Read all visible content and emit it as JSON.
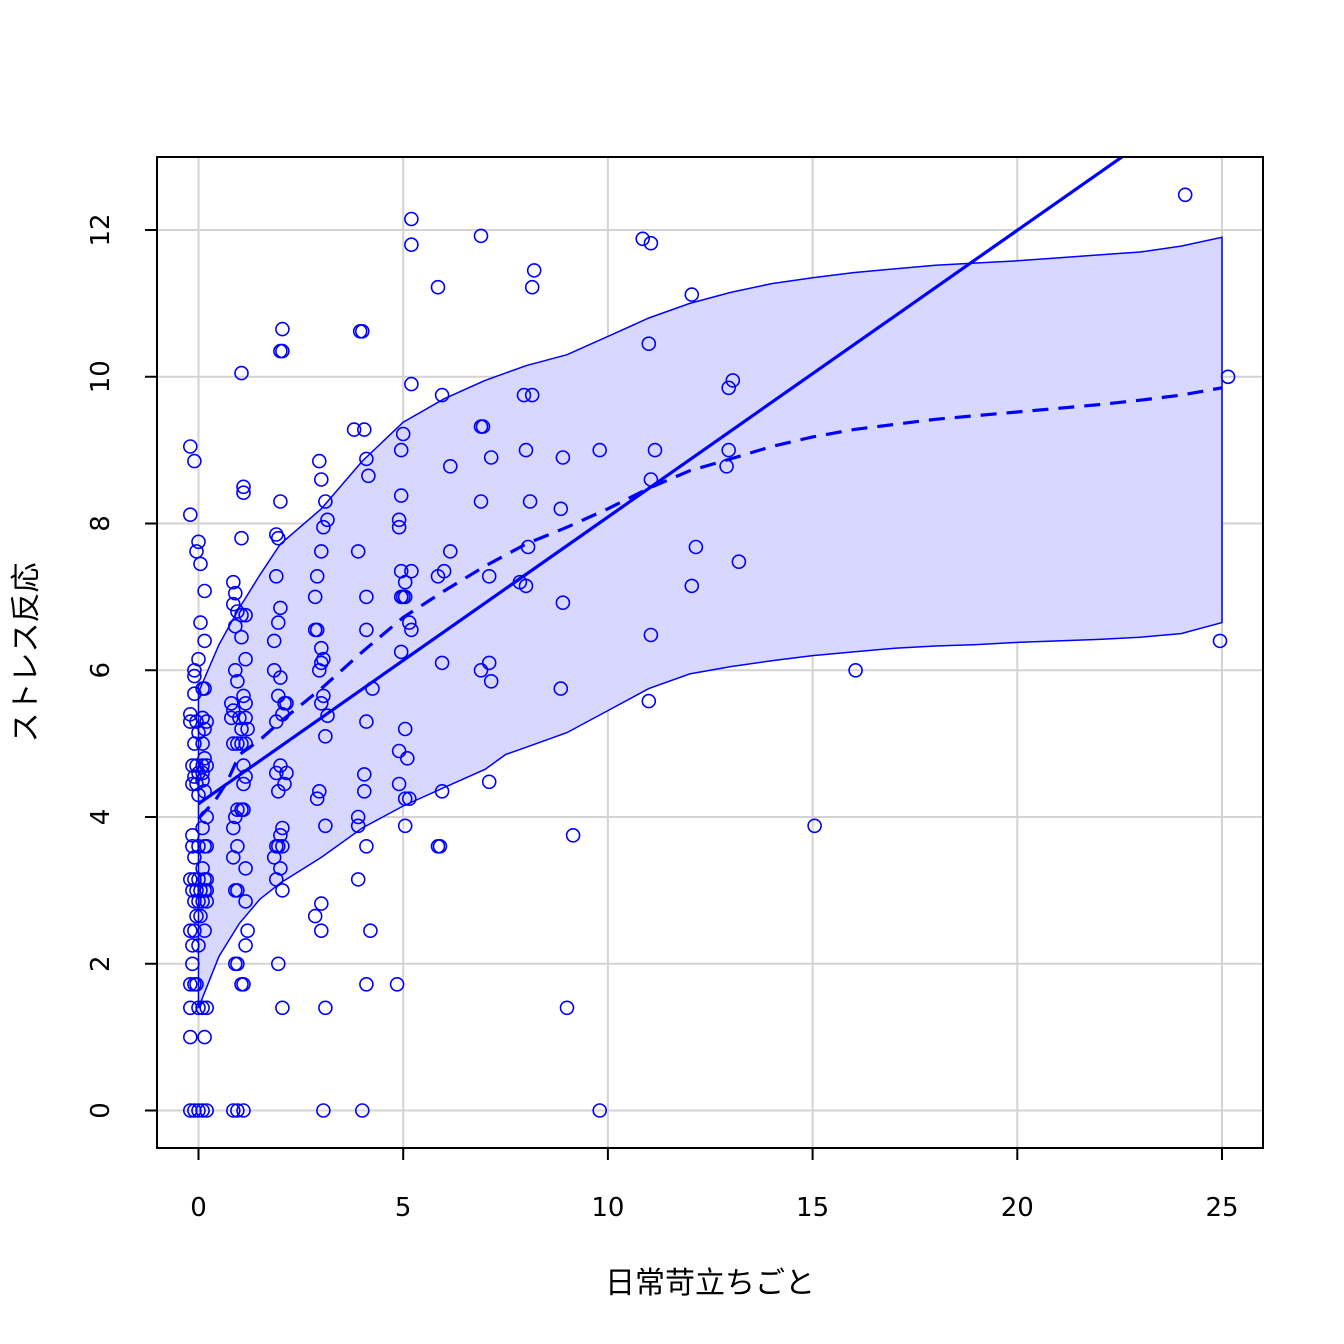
{
  "chart_data": {
    "type": "scatter",
    "title": "",
    "xlabel": "日常苛立ちごと",
    "ylabel": "ストレス反応",
    "xlim": [
      -1,
      26
    ],
    "ylim": [
      -0.5,
      13
    ],
    "xticks": [
      0,
      5,
      10,
      15,
      20,
      25
    ],
    "yticks": [
      0,
      2,
      4,
      6,
      8,
      10,
      12
    ],
    "grid": true,
    "legend": "none",
    "colors": {
      "points": "#0000ff",
      "band_fill": "#d8d8ff",
      "band_line": "#0000ff",
      "grid": "#d3d3d3",
      "axis": "#000000"
    },
    "points": [
      [
        -0.2,
        9.05
      ],
      [
        -0.2,
        8.12
      ],
      [
        -0.1,
        8.85
      ],
      [
        -0.05,
        7.62
      ],
      [
        0,
        7.75
      ],
      [
        0.05,
        7.45
      ],
      [
        0.15,
        7.08
      ],
      [
        0.05,
        6.65
      ],
      [
        0.15,
        6.4
      ],
      [
        0,
        6.15
      ],
      [
        -0.1,
        6.0
      ],
      [
        -0.1,
        5.92
      ],
      [
        -0.1,
        5.68
      ],
      [
        0.1,
        5.75
      ],
      [
        0.15,
        5.75
      ],
      [
        -0.2,
        5.4
      ],
      [
        -0.2,
        5.3
      ],
      [
        -0.05,
        5.3
      ],
      [
        0.1,
        5.35
      ],
      [
        0.2,
        5.3
      ],
      [
        0,
        5.15
      ],
      [
        0.15,
        5.2
      ],
      [
        -0.1,
        5.0
      ],
      [
        0.1,
        5.0
      ],
      [
        0.15,
        4.8
      ],
      [
        -0.15,
        4.7
      ],
      [
        -0.05,
        4.7
      ],
      [
        0.1,
        4.7
      ],
      [
        0.2,
        4.7
      ],
      [
        -0.1,
        4.55
      ],
      [
        0,
        4.6
      ],
      [
        0.1,
        4.6
      ],
      [
        -0.15,
        4.45
      ],
      [
        -0.05,
        4.45
      ],
      [
        0.1,
        4.5
      ],
      [
        0.15,
        4.35
      ],
      [
        0,
        4.3
      ],
      [
        0.2,
        4.0
      ],
      [
        0.1,
        3.85
      ],
      [
        -0.15,
        3.75
      ],
      [
        -0.15,
        3.6
      ],
      [
        0,
        3.6
      ],
      [
        0.15,
        3.6
      ],
      [
        0.2,
        3.6
      ],
      [
        -0.1,
        3.45
      ],
      [
        0.1,
        3.3
      ],
      [
        -0.2,
        3.15
      ],
      [
        -0.1,
        3.15
      ],
      [
        0,
        3.15
      ],
      [
        0.15,
        3.15
      ],
      [
        0.2,
        3.15
      ],
      [
        -0.15,
        3.0
      ],
      [
        -0.05,
        3.0
      ],
      [
        0.05,
        3.0
      ],
      [
        0.15,
        3.0
      ],
      [
        0.2,
        3.0
      ],
      [
        -0.1,
        2.85
      ],
      [
        0,
        2.85
      ],
      [
        0.1,
        2.85
      ],
      [
        0.2,
        2.85
      ],
      [
        -0.05,
        2.65
      ],
      [
        0.05,
        2.65
      ],
      [
        -0.2,
        2.45
      ],
      [
        -0.1,
        2.45
      ],
      [
        0.15,
        2.45
      ],
      [
        -0.15,
        2.25
      ],
      [
        0,
        2.25
      ],
      [
        -0.15,
        2.0
      ],
      [
        -0.2,
        1.72
      ],
      [
        -0.1,
        1.72
      ],
      [
        -0.05,
        1.72
      ],
      [
        -0.2,
        1.4
      ],
      [
        0,
        1.4
      ],
      [
        0.1,
        1.4
      ],
      [
        0.2,
        1.4
      ],
      [
        -0.2,
        1.0
      ],
      [
        0.15,
        1.0
      ],
      [
        -0.2,
        0
      ],
      [
        -0.1,
        0
      ],
      [
        0,
        0
      ],
      [
        0.1,
        0
      ],
      [
        0.2,
        0
      ],
      [
        0.85,
        7.2
      ],
      [
        0.9,
        7.05
      ],
      [
        0.85,
        6.9
      ],
      [
        0.95,
        6.8
      ],
      [
        1.05,
        6.75
      ],
      [
        0.9,
        6.6
      ],
      [
        1.15,
        6.75
      ],
      [
        1.05,
        6.45
      ],
      [
        1.15,
        6.15
      ],
      [
        0.9,
        6.0
      ],
      [
        0.95,
        5.85
      ],
      [
        1.1,
        5.65
      ],
      [
        1.15,
        5.55
      ],
      [
        0.8,
        5.55
      ],
      [
        0.85,
        5.45
      ],
      [
        0.8,
        5.35
      ],
      [
        1.0,
        5.35
      ],
      [
        1.15,
        5.35
      ],
      [
        1.05,
        5.2
      ],
      [
        1.2,
        5.2
      ],
      [
        0.85,
        5.0
      ],
      [
        0.95,
        5.0
      ],
      [
        1.05,
        5.0
      ],
      [
        1.15,
        5.0
      ],
      [
        1.1,
        4.7
      ],
      [
        1.15,
        4.55
      ],
      [
        1.1,
        4.45
      ],
      [
        0.95,
        4.1
      ],
      [
        1.05,
        4.1
      ],
      [
        1.1,
        4.1
      ],
      [
        0.9,
        4.0
      ],
      [
        0.85,
        3.85
      ],
      [
        0.95,
        3.6
      ],
      [
        0.85,
        3.45
      ],
      [
        1.15,
        3.3
      ],
      [
        0.9,
        3.0
      ],
      [
        0.95,
        3.0
      ],
      [
        1.15,
        2.85
      ],
      [
        1.2,
        2.45
      ],
      [
        1.15,
        2.25
      ],
      [
        0.9,
        2.0
      ],
      [
        0.95,
        2.0
      ],
      [
        1.05,
        1.72
      ],
      [
        1.1,
        1.72
      ],
      [
        0.85,
        0
      ],
      [
        0.95,
        0
      ],
      [
        1.1,
        0
      ],
      [
        1.05,
        10.05
      ],
      [
        1.1,
        8.5
      ],
      [
        1.1,
        8.42
      ],
      [
        1.05,
        7.8
      ],
      [
        2.05,
        10.65
      ],
      [
        2.0,
        10.35
      ],
      [
        2.05,
        10.35
      ],
      [
        2.0,
        8.3
      ],
      [
        1.9,
        7.85
      ],
      [
        1.95,
        7.8
      ],
      [
        1.9,
        7.28
      ],
      [
        2.0,
        6.85
      ],
      [
        1.95,
        6.65
      ],
      [
        1.85,
        6.4
      ],
      [
        1.85,
        6.0
      ],
      [
        2.0,
        5.9
      ],
      [
        1.95,
        5.65
      ],
      [
        2.1,
        5.55
      ],
      [
        2.15,
        5.55
      ],
      [
        1.9,
        5.3
      ],
      [
        2.05,
        5.4
      ],
      [
        1.9,
        4.6
      ],
      [
        2.0,
        4.7
      ],
      [
        2.15,
        4.6
      ],
      [
        2.1,
        4.45
      ],
      [
        1.95,
        4.35
      ],
      [
        2.05,
        3.85
      ],
      [
        2.0,
        3.75
      ],
      [
        1.9,
        3.6
      ],
      [
        1.95,
        3.6
      ],
      [
        2.05,
        3.6
      ],
      [
        1.85,
        3.45
      ],
      [
        2.0,
        3.3
      ],
      [
        1.9,
        3.15
      ],
      [
        2.05,
        3.0
      ],
      [
        1.95,
        2.0
      ],
      [
        2.05,
        1.4
      ],
      [
        2.95,
        8.85
      ],
      [
        3.0,
        8.6
      ],
      [
        3.1,
        8.3
      ],
      [
        3.15,
        8.05
      ],
      [
        3.05,
        7.95
      ],
      [
        2.9,
        7.28
      ],
      [
        3.0,
        7.62
      ],
      [
        2.85,
        7.0
      ],
      [
        2.85,
        6.55
      ],
      [
        2.9,
        6.55
      ],
      [
        3.0,
        6.3
      ],
      [
        3.05,
        6.15
      ],
      [
        2.95,
        6.0
      ],
      [
        3.0,
        6.1
      ],
      [
        3.05,
        5.65
      ],
      [
        3.0,
        5.55
      ],
      [
        3.15,
        5.38
      ],
      [
        3.1,
        5.1
      ],
      [
        2.95,
        4.35
      ],
      [
        2.9,
        4.25
      ],
      [
        3.1,
        3.88
      ],
      [
        3.0,
        2.82
      ],
      [
        2.85,
        2.65
      ],
      [
        3.0,
        2.45
      ],
      [
        3.1,
        1.4
      ],
      [
        3.05,
        0
      ],
      [
        4.0,
        10.62
      ],
      [
        3.95,
        10.62
      ],
      [
        3.8,
        9.28
      ],
      [
        4.05,
        9.28
      ],
      [
        4.1,
        8.88
      ],
      [
        4.15,
        8.65
      ],
      [
        3.9,
        7.62
      ],
      [
        4.1,
        7.0
      ],
      [
        4.1,
        6.55
      ],
      [
        4.25,
        5.75
      ],
      [
        4.1,
        5.3
      ],
      [
        4.05,
        4.58
      ],
      [
        4.05,
        4.35
      ],
      [
        3.9,
        4.0
      ],
      [
        3.9,
        3.88
      ],
      [
        4.1,
        3.6
      ],
      [
        3.9,
        3.15
      ],
      [
        4.2,
        2.45
      ],
      [
        4.1,
        1.72
      ],
      [
        4.0,
        0
      ],
      [
        5.2,
        12.15
      ],
      [
        5.2,
        11.8
      ],
      [
        5.2,
        9.9
      ],
      [
        5.0,
        9.22
      ],
      [
        4.95,
        9.0
      ],
      [
        4.95,
        8.38
      ],
      [
        4.9,
        8.05
      ],
      [
        4.9,
        7.95
      ],
      [
        4.95,
        7.35
      ],
      [
        5.05,
        7.2
      ],
      [
        5.2,
        7.35
      ],
      [
        4.95,
        7.0
      ],
      [
        5.0,
        7.0
      ],
      [
        5.05,
        7.0
      ],
      [
        5.15,
        6.65
      ],
      [
        5.2,
        6.55
      ],
      [
        4.95,
        6.25
      ],
      [
        5.05,
        5.2
      ],
      [
        4.9,
        4.9
      ],
      [
        5.1,
        4.8
      ],
      [
        4.9,
        4.45
      ],
      [
        5.05,
        4.25
      ],
      [
        5.15,
        4.25
      ],
      [
        5.05,
        3.88
      ],
      [
        4.85,
        1.72
      ],
      [
        5.85,
        11.22
      ],
      [
        5.95,
        9.75
      ],
      [
        6.15,
        8.78
      ],
      [
        6.15,
        7.62
      ],
      [
        6.0,
        7.35
      ],
      [
        5.85,
        7.28
      ],
      [
        5.95,
        6.1
      ],
      [
        5.95,
        4.35
      ],
      [
        5.85,
        3.6
      ],
      [
        5.9,
        3.6
      ],
      [
        6.9,
        11.92
      ],
      [
        6.9,
        9.32
      ],
      [
        6.95,
        9.32
      ],
      [
        7.15,
        8.9
      ],
      [
        6.9,
        8.3
      ],
      [
        7.1,
        7.28
      ],
      [
        7.1,
        6.1
      ],
      [
        6.9,
        6.0
      ],
      [
        7.15,
        5.85
      ],
      [
        7.1,
        4.48
      ],
      [
        8.2,
        11.45
      ],
      [
        8.15,
        11.22
      ],
      [
        7.95,
        9.75
      ],
      [
        8.15,
        9.75
      ],
      [
        8.0,
        9.0
      ],
      [
        8.1,
        8.3
      ],
      [
        8.05,
        7.68
      ],
      [
        7.85,
        7.2
      ],
      [
        8.0,
        7.15
      ],
      [
        8.9,
        8.9
      ],
      [
        8.85,
        8.2
      ],
      [
        8.9,
        6.92
      ],
      [
        8.85,
        5.75
      ],
      [
        9.15,
        3.75
      ],
      [
        9.0,
        1.4
      ],
      [
        9.8,
        9.0
      ],
      [
        9.8,
        0
      ],
      [
        10.85,
        11.88
      ],
      [
        11.05,
        11.82
      ],
      [
        11.0,
        10.45
      ],
      [
        11.05,
        8.6
      ],
      [
        11.15,
        9.0
      ],
      [
        11.05,
        6.48
      ],
      [
        11.0,
        5.58
      ],
      [
        12.05,
        11.12
      ],
      [
        12.15,
        7.68
      ],
      [
        12.05,
        7.15
      ],
      [
        12.95,
        9.85
      ],
      [
        13.05,
        9.95
      ],
      [
        12.95,
        9.0
      ],
      [
        12.9,
        8.78
      ],
      [
        13.2,
        7.48
      ],
      [
        15.05,
        3.88
      ],
      [
        16.05,
        6.0
      ],
      [
        24.1,
        12.48
      ],
      [
        25.15,
        10.0
      ],
      [
        24.95,
        6.4
      ]
    ],
    "series": [
      {
        "name": "",
        "style": "solid",
        "x": [
          0,
          25
        ],
        "y": [
          4.18,
          13.95
        ]
      },
      {
        "name": "",
        "style": "dashed",
        "x": [
          0,
          0.4,
          0.7,
          1.0,
          1.5,
          2,
          3,
          4,
          5,
          6,
          7,
          8,
          9,
          10,
          11,
          12,
          13,
          14,
          15,
          16,
          17,
          18,
          19,
          20,
          21,
          22,
          23,
          24,
          25
        ],
        "y": [
          3.98,
          4.22,
          4.48,
          4.85,
          5.05,
          5.3,
          5.75,
          6.25,
          6.72,
          7.08,
          7.42,
          7.72,
          7.95,
          8.2,
          8.48,
          8.72,
          8.88,
          9.05,
          9.18,
          9.28,
          9.35,
          9.42,
          9.47,
          9.52,
          9.57,
          9.62,
          9.68,
          9.75,
          9.85
        ]
      }
    ],
    "band": {
      "x": [
        0,
        0.5,
        1,
        1.5,
        2,
        3,
        4,
        5,
        6,
        7,
        7.5,
        8,
        9,
        10,
        11,
        12,
        13,
        14,
        15,
        16,
        17,
        18,
        19,
        20,
        21,
        22,
        23,
        24,
        25
      ],
      "upper": [
        5.7,
        6.35,
        6.85,
        7.3,
        7.72,
        8.2,
        8.85,
        9.38,
        9.7,
        9.95,
        10.05,
        10.15,
        10.3,
        10.55,
        10.8,
        11.0,
        11.15,
        11.27,
        11.35,
        11.42,
        11.47,
        11.52,
        11.55,
        11.58,
        11.62,
        11.66,
        11.7,
        11.78,
        11.9
      ],
      "lower": [
        1.4,
        2.1,
        2.55,
        2.88,
        3.1,
        3.45,
        3.85,
        4.15,
        4.4,
        4.65,
        4.85,
        4.95,
        5.15,
        5.45,
        5.75,
        5.95,
        6.05,
        6.13,
        6.2,
        6.25,
        6.3,
        6.33,
        6.35,
        6.38,
        6.4,
        6.42,
        6.45,
        6.5,
        6.65
      ]
    }
  }
}
